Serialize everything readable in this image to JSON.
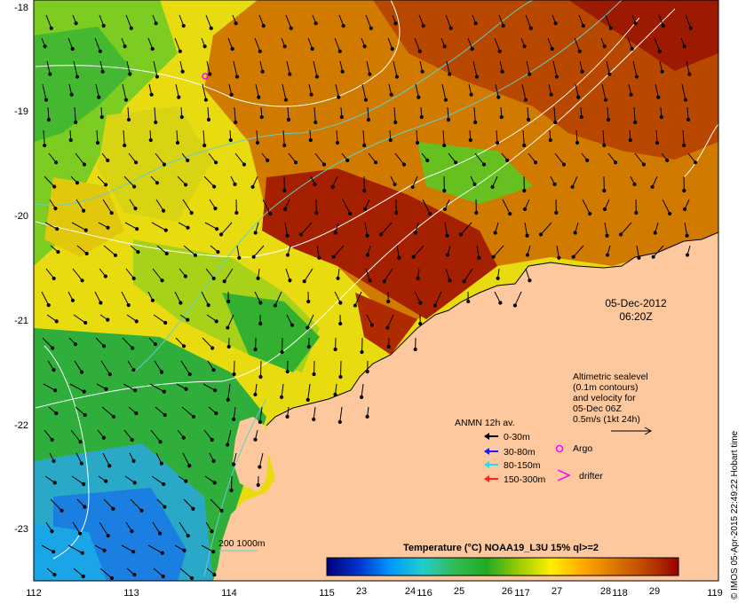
{
  "map": {
    "lon_ticks": [
      "112",
      "113",
      "114",
      "115",
      "116",
      "117",
      "118",
      "119"
    ],
    "lat_ticks": [
      "-18",
      "-19",
      "-20",
      "-21",
      "-22",
      "-23"
    ],
    "lon_range": [
      112,
      119
    ],
    "lat_range": [
      -23.5,
      -18
    ]
  },
  "timestamp": {
    "date": "05-Dec-2012",
    "time": "06:20Z"
  },
  "altimetry_note": {
    "lines": [
      "Altimetric sealevel",
      "(0.1m contours)",
      "and velocity for",
      "05-Dec 06Z",
      "0.5m/s (1kt 24h)"
    ]
  },
  "mooring_legend": {
    "title": "ANMN 12h av.",
    "items": [
      {
        "label": "0-30m",
        "color": "#000000"
      },
      {
        "label": "30-80m",
        "color": "#1a1aff"
      },
      {
        "label": "80-150m",
        "color": "#22ddee"
      },
      {
        "label": "150-300m",
        "color": "#ff2020"
      }
    ]
  },
  "markers": {
    "argo_label": "Argo",
    "drifter_label": "drifter",
    "argo_color": "#ff00ff"
  },
  "bathymetry": {
    "label": "200  1000m",
    "color": "#5fd0d0"
  },
  "colorbar": {
    "title": "Temperature (°C) NOAA19_L3U 15% ql>=2",
    "ticks": [
      "23",
      "24",
      "25",
      "26",
      "27",
      "28",
      "29"
    ],
    "stops": [
      "#00007a",
      "#0033cc",
      "#0099ff",
      "#22cccc",
      "#33bb55",
      "#22aa22",
      "#99cc00",
      "#ffee00",
      "#ffaa00",
      "#dd7700",
      "#bb4400",
      "#990000"
    ]
  },
  "credit": "© IMOS 05-Apr-2015 22:49:22 Hobart time",
  "colors": {
    "land": "#fdc89e",
    "ocean_warm": "#c65a00",
    "ocean_hot": "#9c1a00"
  }
}
